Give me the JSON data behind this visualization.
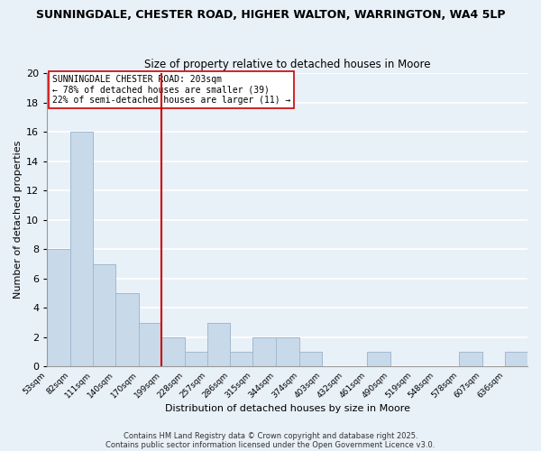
{
  "title": "SUNNINGDALE, CHESTER ROAD, HIGHER WALTON, WARRINGTON, WA4 5LP",
  "subtitle": "Size of property relative to detached houses in Moore",
  "xlabel": "Distribution of detached houses by size in Moore",
  "ylabel": "Number of detached properties",
  "bar_color": "#c8daea",
  "bar_edge_color": "#a0b8d0",
  "background_color": "#e8f0f8",
  "grid_color": "#ffffff",
  "fig_background": "#e8f0f8",
  "bins": [
    53,
    82,
    111,
    140,
    170,
    199,
    228,
    257,
    286,
    315,
    344,
    374,
    403,
    432,
    461,
    490,
    519,
    548,
    578,
    607,
    636
  ],
  "counts": [
    8,
    16,
    7,
    5,
    3,
    2,
    1,
    3,
    1,
    2,
    2,
    1,
    0,
    0,
    1,
    0,
    0,
    0,
    1,
    0,
    1
  ],
  "tick_labels": [
    "53sqm",
    "82sqm",
    "111sqm",
    "140sqm",
    "170sqm",
    "199sqm",
    "228sqm",
    "257sqm",
    "286sqm",
    "315sqm",
    "344sqm",
    "374sqm",
    "403sqm",
    "432sqm",
    "461sqm",
    "490sqm",
    "519sqm",
    "548sqm",
    "578sqm",
    "607sqm",
    "636sqm"
  ],
  "vline_x": 199,
  "vline_color": "#cc0000",
  "annotation_title": "SUNNINGDALE CHESTER ROAD: 203sqm",
  "annotation_line1": "← 78% of detached houses are smaller (39)",
  "annotation_line2": "22% of semi-detached houses are larger (11) →",
  "ylim": [
    0,
    20
  ],
  "yticks": [
    0,
    2,
    4,
    6,
    8,
    10,
    12,
    14,
    16,
    18,
    20
  ],
  "footnote1": "Contains HM Land Registry data © Crown copyright and database right 2025.",
  "footnote2": "Contains public sector information licensed under the Open Government Licence v3.0."
}
